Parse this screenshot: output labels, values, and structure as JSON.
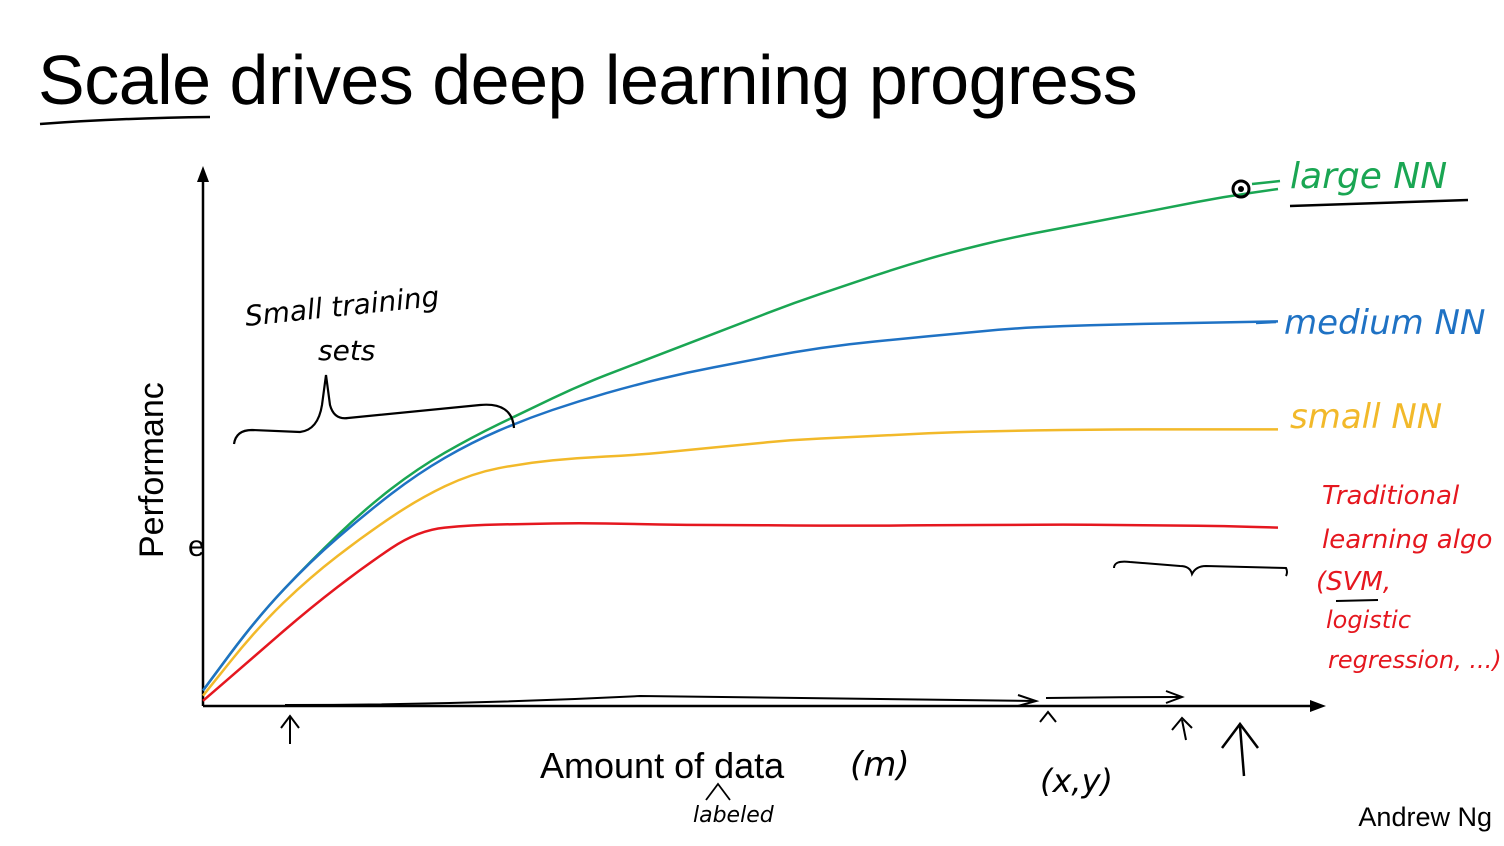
{
  "title": {
    "underlined": "Scale",
    "rest": " drives deep learning progress"
  },
  "footer": {
    "author": "Andrew Ng"
  },
  "colors": {
    "large_nn": "#1aa653",
    "medium_nn": "#1f72c4",
    "small_nn": "#f2b92a",
    "traditional": "#e5171f",
    "axis": "#000000"
  },
  "chart_data": {
    "type": "line",
    "ylabel": "Performanc",
    "ylabel_extra": "e",
    "xlabel": "Amount of data",
    "xlabel_symbol": "(m)",
    "xlabel_note": "labeled",
    "grid": false,
    "axes_ticks": false,
    "x": [
      0,
      0.05,
      0.1,
      0.15,
      0.2,
      0.25,
      0.3,
      0.35,
      0.4,
      0.45,
      0.5,
      0.55,
      0.6,
      0.65,
      0.7,
      0.75,
      0.8,
      0.85,
      0.9,
      0.95,
      1.0
    ],
    "series": [
      {
        "name": "large NN",
        "color_key": "large_nn",
        "values": [
          0.03,
          0.17,
          0.28,
          0.38,
          0.46,
          0.52,
          0.57,
          0.62,
          0.66,
          0.7,
          0.74,
          0.78,
          0.815,
          0.85,
          0.88,
          0.905,
          0.925,
          0.945,
          0.965,
          0.985,
          1.0
        ]
      },
      {
        "name": "medium NN",
        "color_key": "medium_nn",
        "values": [
          0.03,
          0.17,
          0.28,
          0.37,
          0.45,
          0.51,
          0.555,
          0.59,
          0.62,
          0.645,
          0.665,
          0.685,
          0.7,
          0.71,
          0.72,
          0.73,
          0.735,
          0.738,
          0.74,
          0.742,
          0.744
        ]
      },
      {
        "name": "small NN",
        "color_key": "small_nn",
        "values": [
          0.02,
          0.15,
          0.25,
          0.33,
          0.4,
          0.45,
          0.47,
          0.48,
          0.485,
          0.495,
          0.505,
          0.515,
          0.52,
          0.525,
          0.53,
          0.532,
          0.534,
          0.535,
          0.535,
          0.535,
          0.535
        ]
      },
      {
        "name": "Traditional learning algo (SVM, logistic regression, ...)",
        "color_key": "traditional",
        "values": [
          0.01,
          0.1,
          0.19,
          0.27,
          0.34,
          0.35,
          0.352,
          0.354,
          0.352,
          0.35,
          0.35,
          0.349,
          0.349,
          0.349,
          0.35,
          0.35,
          0.351,
          0.35,
          0.349,
          0.348,
          0.345
        ]
      }
    ],
    "annotations": {
      "large": "large NN",
      "medium": "medium NN",
      "small": "small NN",
      "trad_line1": "Traditional",
      "trad_line2": "learning algo",
      "trad_line3": "(SVM,",
      "trad_line4": "logistic",
      "trad_line5": "regression, ...)",
      "small_sets_line1": "Small training",
      "small_sets_line2": "sets",
      "xy": "(x,y)"
    }
  }
}
